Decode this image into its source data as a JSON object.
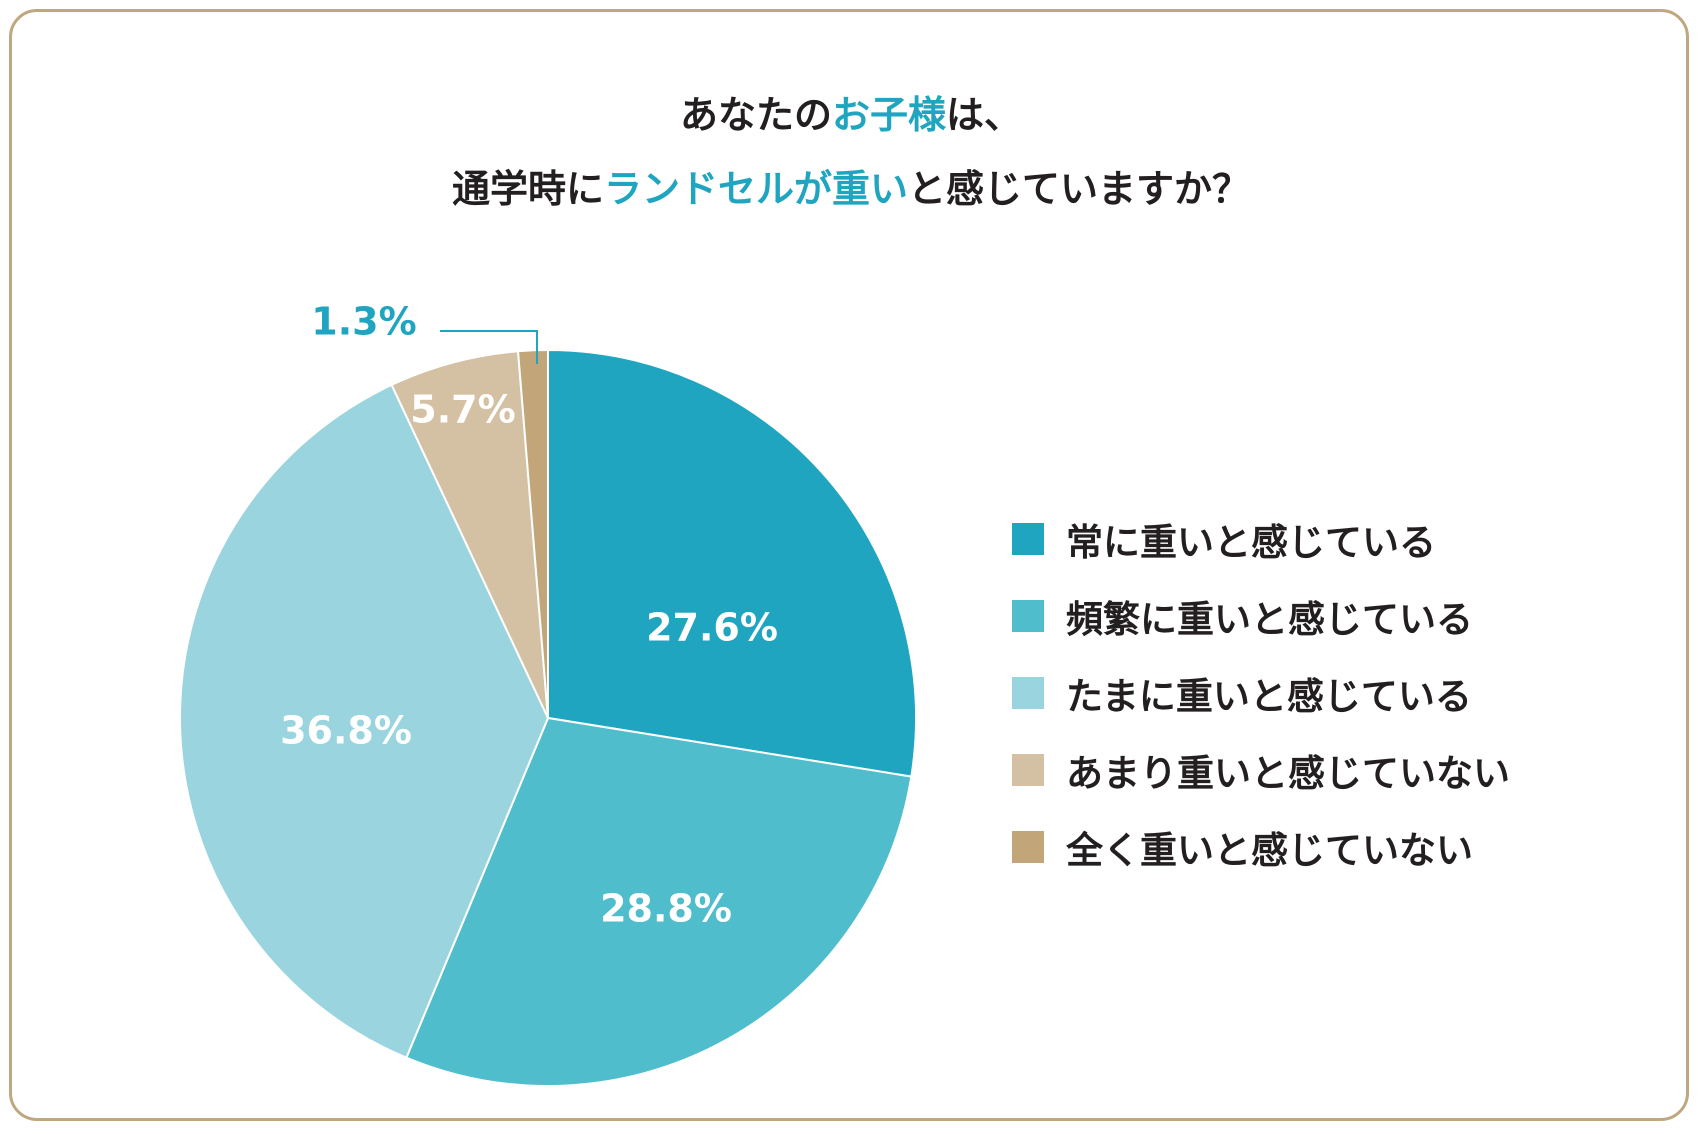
{
  "chart_data": {
    "type": "pie",
    "title_parts": [
      [
        {
          "text": "あなたの",
          "hl": false
        },
        {
          "text": "お子様",
          "hl": true
        },
        {
          "text": "は、",
          "hl": false
        }
      ],
      [
        {
          "text": "通学時に",
          "hl": false
        },
        {
          "text": "ランドセルが重い",
          "hl": true
        },
        {
          "text": "と感じていますか？",
          "hl": false
        }
      ]
    ],
    "slices": [
      {
        "label": "常に重いと感じている",
        "value": 27.6,
        "value_label": "27.6%",
        "color": "#1fa5bf"
      },
      {
        "label": "頻繁に重いと感じている",
        "value": 28.8,
        "value_label": "28.8%",
        "color": "#50bdcc"
      },
      {
        "label": "たまに重いと感じている",
        "value": 36.8,
        "value_label": "36.8%",
        "color": "#9ad4de"
      },
      {
        "label": "あまり重いと感じていない",
        "value": 5.7,
        "value_label": "5.7%",
        "color": "#d4c1a3"
      },
      {
        "label": "全く重いと感じていない",
        "value": 1.3,
        "value_label": "1.3%",
        "color": "#c3a57a"
      }
    ],
    "start_angle_deg": 0,
    "direction": "clockwise",
    "legend_position": "right"
  },
  "colors": {
    "accent": "#1fa5bf",
    "frame": "#bfa77f",
    "text": "#231f20"
  }
}
